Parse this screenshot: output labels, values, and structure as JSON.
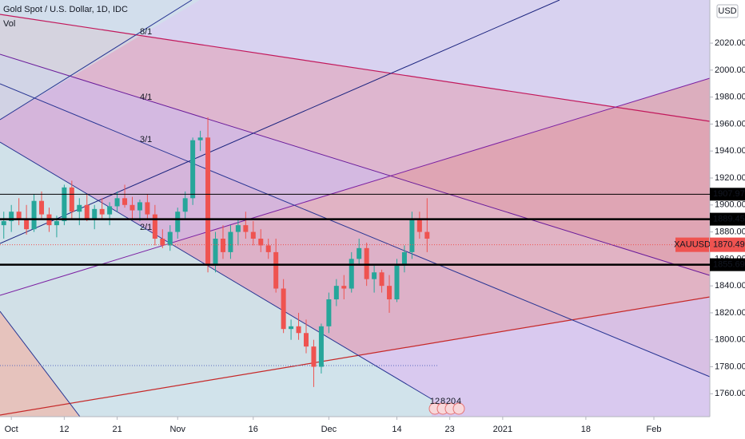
{
  "chart_data": {
    "type": "candlestick",
    "title": "Gold Spot / U.S. Dollar, 1D, IDC",
    "subtitle": "Vol",
    "currency": "USD",
    "up_color": "#26a69a",
    "down_color": "#ef5350",
    "open": [
      1885,
      1888,
      1895,
      1890,
      1882,
      1903,
      1893,
      1885,
      1888,
      1913,
      1895,
      1900,
      1890,
      1897,
      1893,
      1899,
      1905,
      1900,
      1896,
      1902,
      1893,
      1875,
      1870,
      1880,
      1895,
      1905,
      1948,
      1950,
      1855,
      1875,
      1865,
      1880,
      1885,
      1880,
      1875,
      1870,
      1865,
      1838,
      1808,
      1810,
      1805,
      1795,
      1780,
      1810,
      1830,
      1840,
      1838,
      1860,
      1868,
      1845,
      1850,
      1840,
      1830,
      1855,
      1865,
      1890,
      1880
    ],
    "high": [
      1895,
      1900,
      1905,
      1900,
      1908,
      1910,
      1898,
      1892,
      1915,
      1918,
      1905,
      1908,
      1900,
      1905,
      1902,
      1910,
      1915,
      1906,
      1904,
      1908,
      1900,
      1882,
      1885,
      1898,
      1910,
      1950,
      1955,
      1965,
      1880,
      1885,
      1885,
      1890,
      1895,
      1888,
      1882,
      1875,
      1875,
      1845,
      1815,
      1820,
      1815,
      1800,
      1812,
      1835,
      1845,
      1848,
      1865,
      1875,
      1872,
      1855,
      1852,
      1848,
      1860,
      1870,
      1895,
      1895,
      1905
    ],
    "low": [
      1875,
      1880,
      1885,
      1878,
      1880,
      1890,
      1880,
      1876,
      1885,
      1890,
      1885,
      1888,
      1882,
      1890,
      1885,
      1895,
      1898,
      1890,
      1888,
      1890,
      1870,
      1868,
      1866,
      1875,
      1890,
      1900,
      1940,
      1850,
      1850,
      1860,
      1860,
      1870,
      1875,
      1870,
      1865,
      1860,
      1835,
      1805,
      1800,
      1800,
      1790,
      1765,
      1775,
      1805,
      1825,
      1830,
      1835,
      1855,
      1840,
      1835,
      1835,
      1820,
      1828,
      1850,
      1860,
      1875,
      1865
    ],
    "close": [
      1888,
      1895,
      1890,
      1882,
      1903,
      1893,
      1885,
      1888,
      1913,
      1895,
      1900,
      1890,
      1897,
      1893,
      1899,
      1905,
      1900,
      1896,
      1902,
      1893,
      1875,
      1870,
      1880,
      1895,
      1905,
      1948,
      1950,
      1855,
      1875,
      1865,
      1880,
      1885,
      1880,
      1875,
      1870,
      1865,
      1838,
      1808,
      1810,
      1805,
      1795,
      1780,
      1810,
      1830,
      1840,
      1838,
      1860,
      1868,
      1845,
      1850,
      1840,
      1830,
      1855,
      1865,
      1890,
      1880,
      1875
    ],
    "xlim": [
      -0.5,
      93.4
    ],
    "xticks": [
      {
        "value": 1,
        "label": "Oct"
      },
      {
        "value": 8,
        "label": "12"
      },
      {
        "value": 15,
        "label": "21"
      },
      {
        "value": 23,
        "label": "Nov"
      },
      {
        "value": 33,
        "label": "16"
      },
      {
        "value": 43,
        "label": "Dec"
      },
      {
        "value": 52,
        "label": "14"
      },
      {
        "value": 59,
        "label": "23"
      },
      {
        "value": 66,
        "label": "2021"
      },
      {
        "value": 77,
        "label": "18"
      },
      {
        "value": 86,
        "label": "Feb"
      }
    ],
    "ylim": [
      1743,
      2052
    ],
    "yticks": [
      {
        "value": 1760,
        "label": "1760.00"
      },
      {
        "value": 1780,
        "label": "1780.00"
      },
      {
        "value": 1800,
        "label": "1800.00"
      },
      {
        "value": 1820,
        "label": "1820.00"
      },
      {
        "value": 1840,
        "label": "1840.00"
      },
      {
        "value": 1860,
        "label": "1860.00"
      },
      {
        "value": 1880,
        "label": "1880.00"
      },
      {
        "value": 1900,
        "label": "1900.00"
      },
      {
        "value": 1920,
        "label": "1920.00"
      },
      {
        "value": 1940,
        "label": "1940.00"
      },
      {
        "value": 1960,
        "label": "1960.00"
      },
      {
        "value": 1980,
        "label": "1980.00"
      },
      {
        "value": 2000,
        "label": "2000.00"
      },
      {
        "value": 2020,
        "label": "2020.00"
      }
    ],
    "levels": [
      1907.97,
      1889.45,
      1855.69
    ],
    "symbol": "XAUUSD",
    "last_price": 1870.49,
    "fan_labels": [
      "8/1",
      "4/1",
      "3/1",
      "2/1"
    ],
    "events": [
      "12",
      "8",
      "20",
      "4"
    ]
  }
}
